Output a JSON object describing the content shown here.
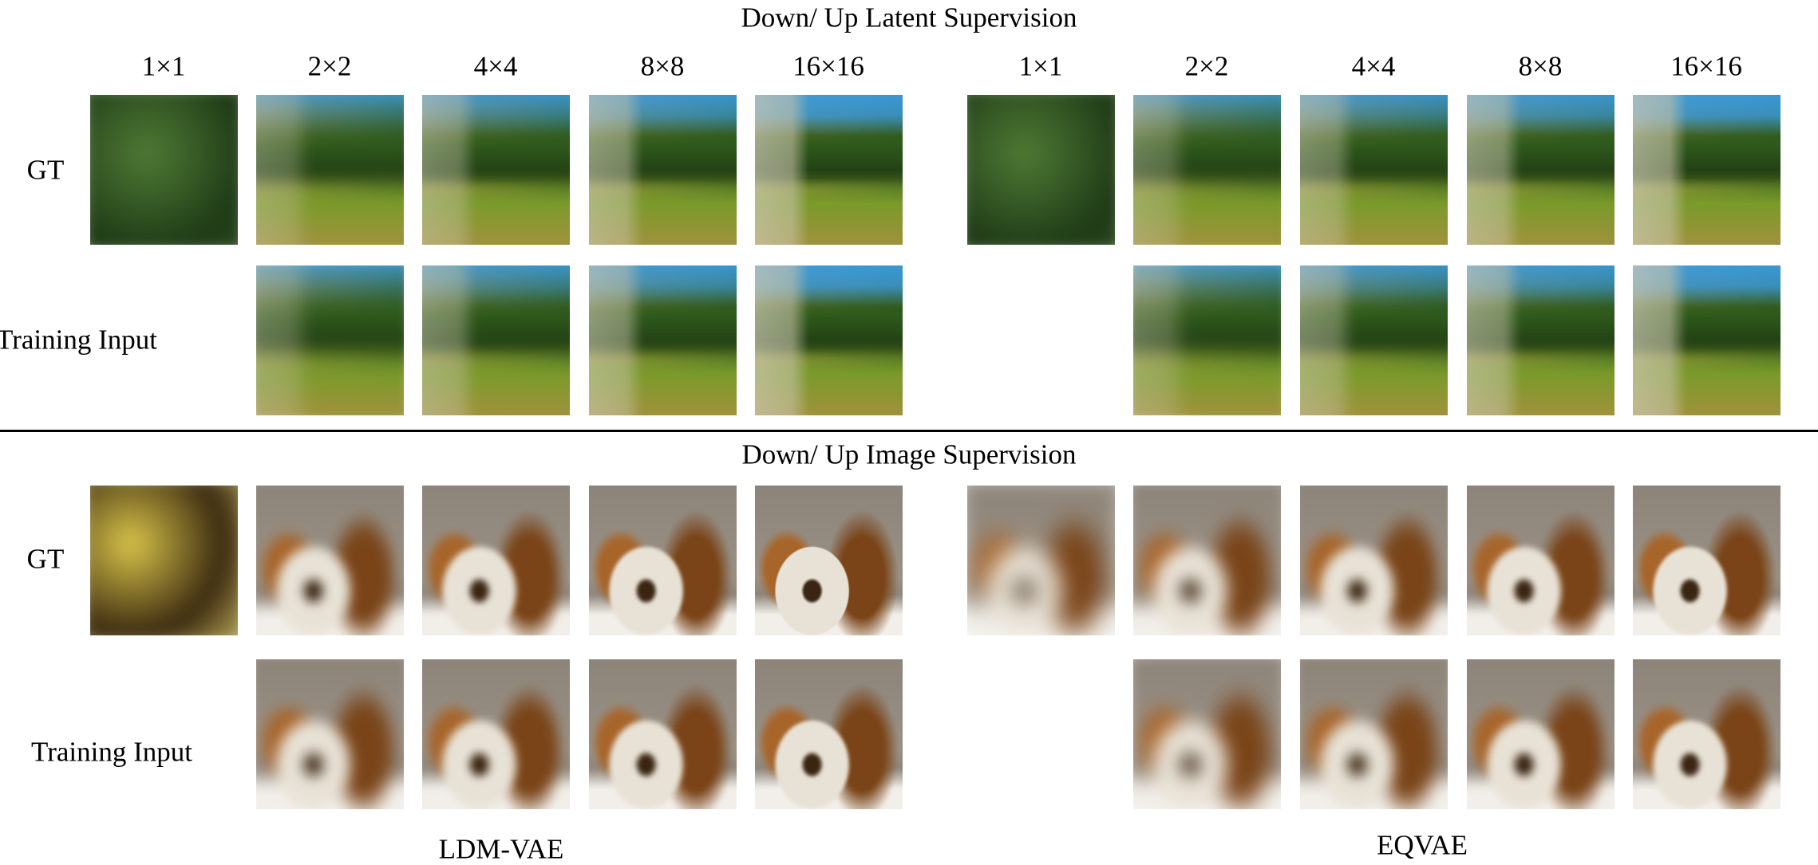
{
  "sections": [
    {
      "title": "Down/ Up Latent Supervision",
      "column_labels": [
        "1×1",
        "2×2",
        "4×4",
        "8×8",
        "16×16",
        "1×1",
        "2×2",
        "4×4",
        "8×8",
        "16×16"
      ],
      "row_labels": [
        "GT",
        "Training Input"
      ],
      "scene": "forest river landscape"
    },
    {
      "title": "Down/ Up Image Supervision",
      "row_labels": [
        "GT",
        "Training Input"
      ],
      "scene": "kittens with toilet paper roll"
    }
  ],
  "method_labels": [
    "LDM-VAE",
    "EQVAE"
  ],
  "colors": {
    "forest_sky": "#3a9be0",
    "forest_green": "#2f5a1c",
    "forest_grass": "#7a9a2a",
    "forest_yellow": "#a89040",
    "kitten_bg": "#8c8378",
    "kitten_fur": "#a8652a",
    "kitten_white": "#f2efea"
  }
}
